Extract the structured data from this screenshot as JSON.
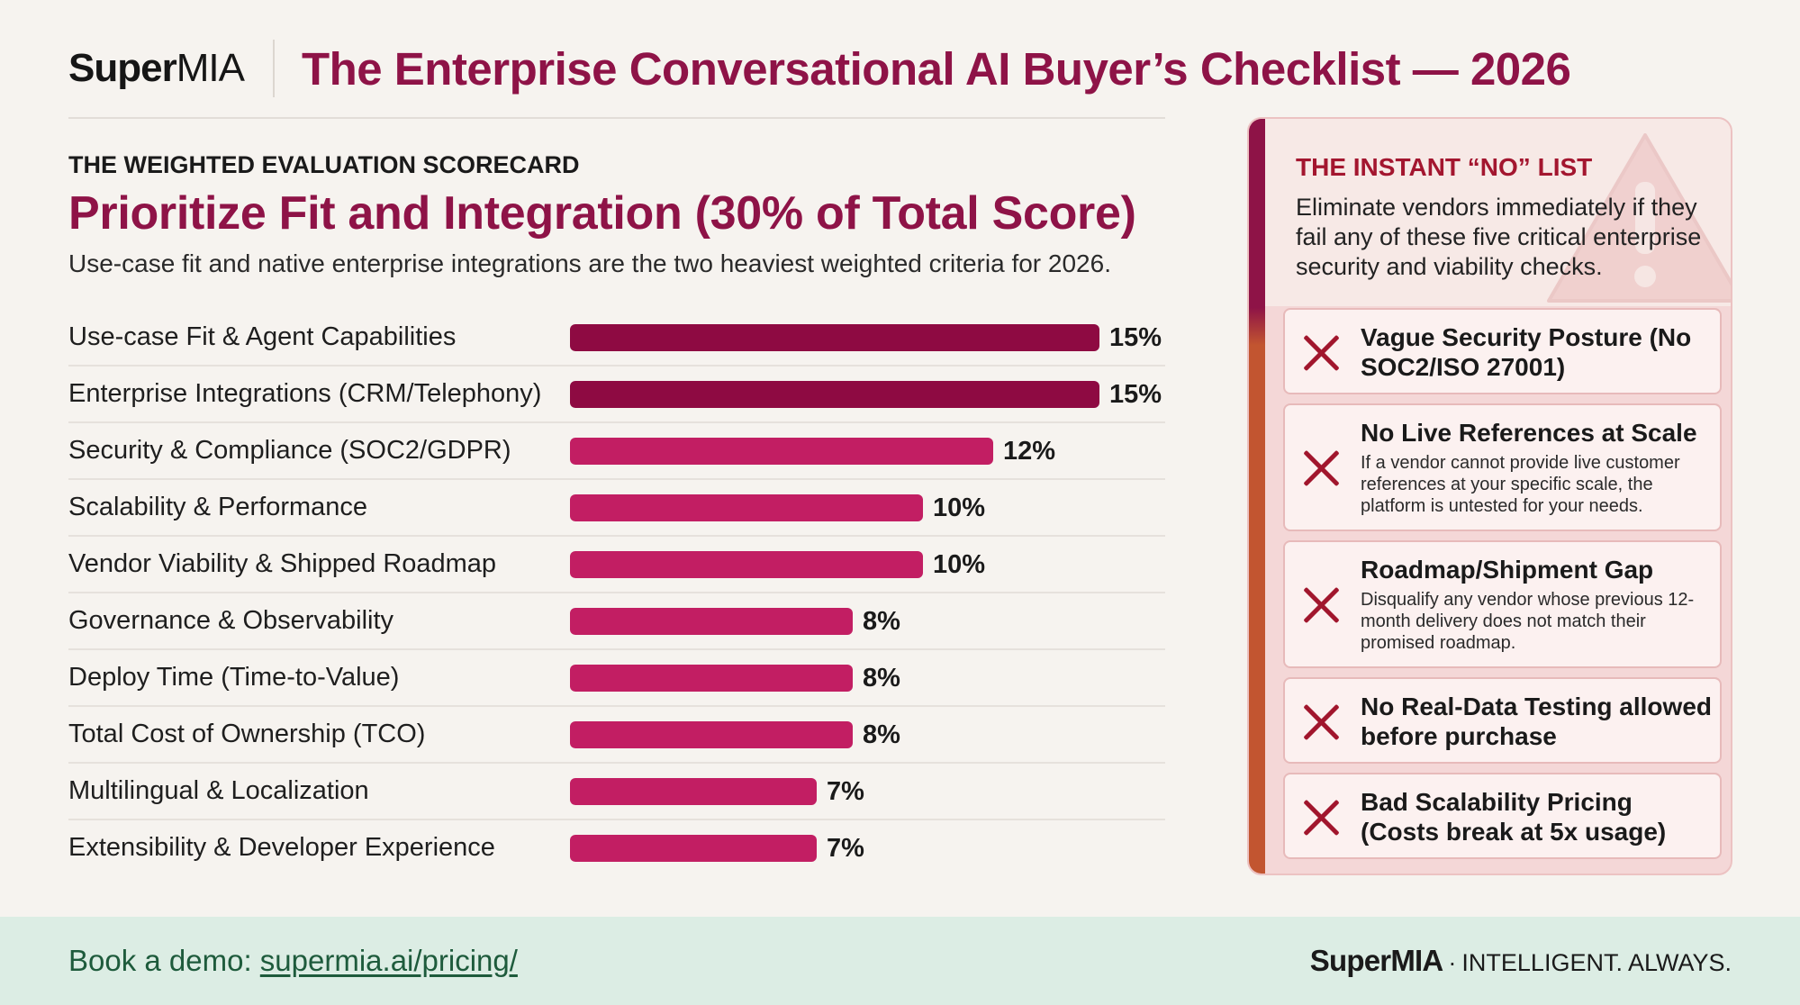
{
  "header": {
    "logo_super": "Super",
    "logo_mia": "MIA",
    "title": "The Enterprise Conversational AI Buyer’s Checklist — 2026"
  },
  "scorecard": {
    "eyebrow": "THE WEIGHTED EVALUATION SCORECARD",
    "subtitle": "Prioritize Fit and Integration (30% of Total Score)",
    "description": "Use-case fit and native enterprise integrations are the two heaviest weighted criteria for 2026."
  },
  "chart_data": {
    "type": "bar",
    "orientation": "horizontal",
    "categories": [
      "Use-case Fit & Agent Capabilities",
      "Enterprise Integrations (CRM/Telephony)",
      "Security & Compliance (SOC2/GDPR)",
      "Scalability & Performance",
      "Vendor Viability & Shipped Roadmap",
      "Governance & Observability",
      "Deploy Time (Time-to-Value)",
      "Total Cost of Ownership (TCO)",
      "Multilingual & Localization",
      "Extensibility & Developer Experience"
    ],
    "values": [
      15,
      15,
      12,
      10,
      10,
      8,
      8,
      8,
      7,
      7
    ],
    "value_labels": [
      "15%",
      "15%",
      "12%",
      "10%",
      "10%",
      "8%",
      "8%",
      "8%",
      "7%",
      "7%"
    ],
    "unit": "%",
    "xlim": [
      0,
      15
    ],
    "grid": false,
    "colors": {
      "top": "#8e0a42",
      "default": "#c21e63"
    }
  },
  "no_list": {
    "title": "THE INSTANT “NO” LIST",
    "description": "Eliminate vendors immediately if they fail any of these five critical enterprise security and viability checks.",
    "items": [
      {
        "title": "Vague Security Posture (No SOC2/ISO 27001)",
        "desc": ""
      },
      {
        "title": "No Live References at Scale",
        "desc": "If a vendor cannot provide live customer references at your specific scale, the platform is untested for your needs."
      },
      {
        "title": "Roadmap/Shipment Gap",
        "desc": "Disqualify any vendor whose previous 12-month delivery does not match their promised roadmap."
      },
      {
        "title": "No Real-Data Testing allowed before purchase",
        "desc": ""
      },
      {
        "title": "Bad Scalability Pricing (Costs break at 5x usage)",
        "desc": ""
      }
    ]
  },
  "footer": {
    "cta_text": "Book a demo: ",
    "cta_link": "supermia.ai/pricing/",
    "brand_super": "Super",
    "brand_mia": "MIA",
    "separator": "·",
    "tagline": "INTELLIGENT. ALWAYS."
  }
}
